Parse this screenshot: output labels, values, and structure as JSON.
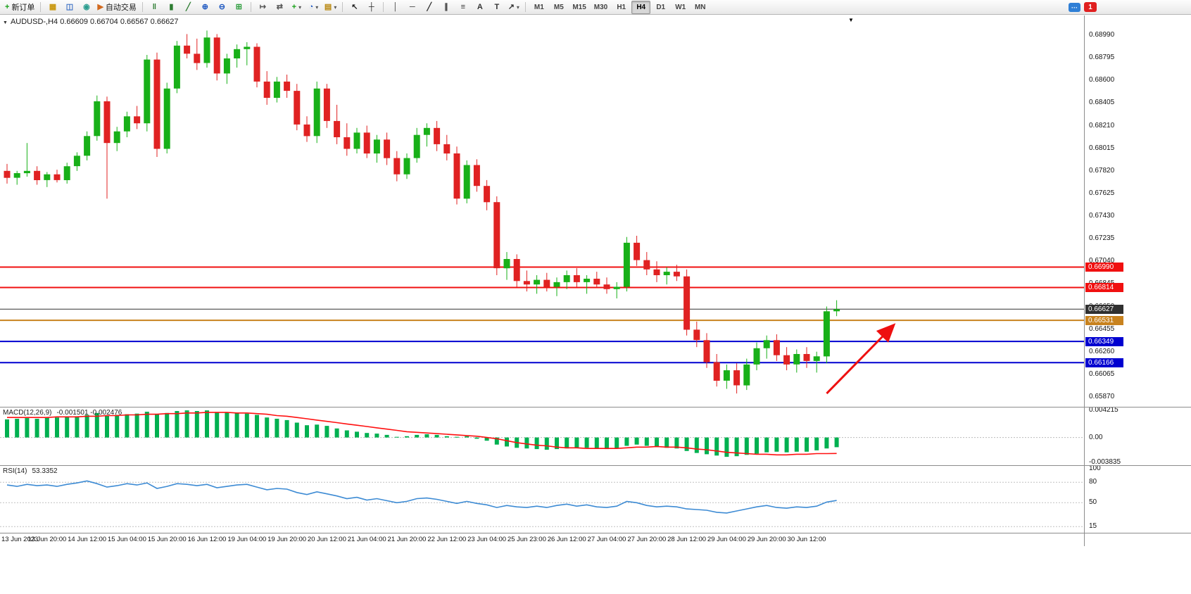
{
  "toolbar": {
    "notification_count": "1",
    "timeframes": [
      "M1",
      "M5",
      "M15",
      "M30",
      "H1",
      "H4",
      "D1",
      "W1",
      "MN"
    ],
    "active_timeframe": "H4",
    "groups": [
      {
        "items": [
          {
            "name": "new-order-button",
            "icon": "new-order-icon",
            "glyph": "+",
            "color": "#16a016",
            "label": "新订单"
          }
        ]
      },
      {
        "items": [
          {
            "name": "new-chart-button",
            "icon": "new-chart-icon",
            "glyph": "▦",
            "color": "#c8960c"
          },
          {
            "name": "profiles-button",
            "icon": "profiles-icon",
            "glyph": "◫",
            "color": "#3a6fc4"
          },
          {
            "name": "market-watch-button",
            "icon": "market-watch-icon",
            "glyph": "◉",
            "color": "#2a9d8f"
          },
          {
            "name": "autotrading-button",
            "icon": "autotrading-icon",
            "glyph": "▶",
            "color": "#d2691e",
            "label": "自动交易"
          }
        ]
      },
      {
        "items": [
          {
            "name": "bar-chart-button",
            "icon": "bar-chart-icon",
            "glyph": "‖",
            "color": "#2e7d32"
          },
          {
            "name": "candlestick-button",
            "icon": "candlestick-icon",
            "glyph": "▮",
            "color": "#2e7d32"
          },
          {
            "name": "line-chart-button",
            "icon": "line-chart-icon",
            "glyph": "╱",
            "color": "#2e7d32"
          },
          {
            "name": "zoom-in-button",
            "icon": "zoom-in-icon",
            "glyph": "⊕",
            "color": "#1a55c0"
          },
          {
            "name": "zoom-out-button",
            "icon": "zoom-out-icon",
            "glyph": "⊖",
            "color": "#1a55c0"
          },
          {
            "name": "tile-windows-button",
            "icon": "tile-windows-icon",
            "glyph": "⊞",
            "color": "#2e9e3e"
          }
        ]
      },
      {
        "items": [
          {
            "name": "auto-scroll-button",
            "icon": "auto-scroll-icon",
            "glyph": "↦",
            "color": "#555555"
          },
          {
            "name": "chart-shift-button",
            "icon": "chart-shift-icon",
            "glyph": "⇄",
            "color": "#555555"
          },
          {
            "name": "indicators-button",
            "icon": "indicators-icon",
            "glyph": "+",
            "color": "#16a016",
            "dropdown": true
          },
          {
            "name": "periods-button",
            "icon": "periods-icon",
            "glyph": "◔",
            "color": "#1a55c0",
            "dropdown": true
          },
          {
            "name": "templates-button",
            "icon": "templates-icon",
            "glyph": "▤",
            "color": "#b8860b",
            "dropdown": true
          }
        ]
      },
      {
        "items": [
          {
            "name": "cursor-button",
            "icon": "cursor-icon",
            "glyph": "↖",
            "color": "#222222"
          },
          {
            "name": "crosshair-button",
            "icon": "crosshair-icon",
            "glyph": "┼",
            "color": "#222222"
          }
        ]
      },
      {
        "items": [
          {
            "name": "vertical-line-button",
            "icon": "vertical-line-icon",
            "glyph": "│",
            "color": "#333333"
          },
          {
            "name": "horizontal-line-button",
            "icon": "horizontal-line-icon",
            "glyph": "─",
            "color": "#333333"
          },
          {
            "name": "trendline-button",
            "icon": "trendline-icon",
            "glyph": "╱",
            "color": "#333333"
          },
          {
            "name": "channel-button",
            "icon": "channel-icon",
            "glyph": "∥",
            "color": "#333333"
          },
          {
            "name": "fibonacci-button",
            "icon": "fibonacci-icon",
            "glyph": "≡",
            "color": "#333333"
          },
          {
            "name": "text-button",
            "icon": "text-icon",
            "glyph": "A",
            "color": "#333333"
          },
          {
            "name": "text-label-button",
            "icon": "text-label-icon",
            "glyph": "T",
            "color": "#333333"
          },
          {
            "name": "arrows-button",
            "icon": "arrows-icon",
            "glyph": "↗",
            "color": "#333333",
            "dropdown": true
          }
        ]
      }
    ]
  },
  "chart_data": [
    {
      "type": "candlestick",
      "title_line": "AUDUSD-,H4 0.66609 0.66704 0.66567 0.66627",
      "symbol": "AUDUSD-",
      "timeframe": "H4",
      "current_ohlc": {
        "open": 0.66609,
        "high": 0.66704,
        "low": 0.66567,
        "close": 0.66627
      },
      "ylim": [
        0.65785,
        0.6916
      ],
      "colors": {
        "bull": "#18b018",
        "bear": "#e02222"
      },
      "y_axis_labels": [
        "0.68990",
        "0.68795",
        "0.68600",
        "0.68405",
        "0.68210",
        "0.68015",
        "0.67820",
        "0.67625",
        "0.67430",
        "0.67235",
        "0.67040",
        "0.66845",
        "0.66650",
        "0.66455",
        "0.66260",
        "0.66065",
        "0.65870"
      ],
      "time_labels": [
        "13 Jun 2023",
        "13 Jun 20:00",
        "14 Jun 12:00",
        "15 Jun 04:00",
        "15 Jun 20:00",
        "16 Jun 12:00",
        "19 Jun 04:00",
        "19 Jun 20:00",
        "20 Jun 12:00",
        "21 Jun 04:00",
        "21 Jun 20:00",
        "22 Jun 12:00",
        "23 Jun 04:00",
        "25 Jun 23:00",
        "26 Jun 12:00",
        "27 Jun 04:00",
        "27 Jun 20:00",
        "28 Jun 12:00",
        "29 Jun 04:00",
        "29 Jun 20:00",
        "30 Jun 12:00"
      ],
      "price_lines": [
        {
          "price": 0.6699,
          "label": "0.66990",
          "color": "#f01010",
          "width": 2
        },
        {
          "price": 0.66814,
          "label": "0.66814",
          "color": "#f01010",
          "width": 2
        },
        {
          "price": 0.66627,
          "label": "0.66627",
          "color": "#303030",
          "width": 1
        },
        {
          "price": 0.66531,
          "label": "0.66531",
          "color": "#c8821e",
          "width": 2
        },
        {
          "price": 0.66349,
          "label": "0.66349",
          "color": "#0000d0",
          "width": 2
        },
        {
          "price": 0.66166,
          "label": "0.66166",
          "color": "#0000d0",
          "width": 2
        }
      ],
      "annotations": [
        {
          "type": "arrow",
          "from": {
            "x_index": 82.0,
            "price": 0.659
          },
          "to": {
            "x_index": 88.6,
            "price": 0.6648
          },
          "color": "#ee1010",
          "width": 3
        }
      ],
      "ohlc": [
        [
          0.6782,
          0.6788,
          0.6771,
          0.6776
        ],
        [
          0.6776,
          0.6782,
          0.677,
          0.678
        ],
        [
          0.678,
          0.6806,
          0.6777,
          0.6782
        ],
        [
          0.6782,
          0.6786,
          0.677,
          0.6774
        ],
        [
          0.6774,
          0.6781,
          0.6768,
          0.6779
        ],
        [
          0.6779,
          0.6783,
          0.6772,
          0.6774
        ],
        [
          0.6774,
          0.6789,
          0.6771,
          0.6786
        ],
        [
          0.6786,
          0.6798,
          0.6782,
          0.6795
        ],
        [
          0.6795,
          0.6816,
          0.6791,
          0.6812
        ],
        [
          0.6812,
          0.6847,
          0.6808,
          0.6842
        ],
        [
          0.6842,
          0.6846,
          0.6758,
          0.6806
        ],
        [
          0.6806,
          0.682,
          0.6799,
          0.6816
        ],
        [
          0.6816,
          0.6833,
          0.6811,
          0.6829
        ],
        [
          0.6829,
          0.6838,
          0.6818,
          0.6823
        ],
        [
          0.6823,
          0.6882,
          0.6816,
          0.6878
        ],
        [
          0.6878,
          0.6884,
          0.6794,
          0.6801
        ],
        [
          0.6801,
          0.6858,
          0.6797,
          0.6853
        ],
        [
          0.6853,
          0.6894,
          0.6849,
          0.689
        ],
        [
          0.689,
          0.69,
          0.6879,
          0.6883
        ],
        [
          0.6883,
          0.6896,
          0.6869,
          0.6875
        ],
        [
          0.6875,
          0.6903,
          0.6871,
          0.6897
        ],
        [
          0.6897,
          0.69,
          0.686,
          0.6866
        ],
        [
          0.6866,
          0.6883,
          0.6857,
          0.6879
        ],
        [
          0.6879,
          0.6891,
          0.6871,
          0.6887
        ],
        [
          0.6887,
          0.6893,
          0.6873,
          0.6889
        ],
        [
          0.6889,
          0.6892,
          0.6854,
          0.6859
        ],
        [
          0.6859,
          0.6868,
          0.6839,
          0.6845
        ],
        [
          0.6845,
          0.6863,
          0.6841,
          0.6859
        ],
        [
          0.6859,
          0.6865,
          0.6845,
          0.6851
        ],
        [
          0.6851,
          0.6857,
          0.6817,
          0.6822
        ],
        [
          0.6822,
          0.6829,
          0.6807,
          0.6812
        ],
        [
          0.6812,
          0.6859,
          0.6806,
          0.6853
        ],
        [
          0.6853,
          0.6857,
          0.6819,
          0.6825
        ],
        [
          0.6825,
          0.6839,
          0.6805,
          0.6811
        ],
        [
          0.6811,
          0.6823,
          0.6795,
          0.6801
        ],
        [
          0.6801,
          0.6819,
          0.6797,
          0.6815
        ],
        [
          0.6815,
          0.6821,
          0.6793,
          0.6797
        ],
        [
          0.6797,
          0.6813,
          0.6789,
          0.6809
        ],
        [
          0.6809,
          0.6815,
          0.6787,
          0.6793
        ],
        [
          0.6793,
          0.6799,
          0.6773,
          0.6779
        ],
        [
          0.6779,
          0.6797,
          0.6775,
          0.6793
        ],
        [
          0.6793,
          0.6819,
          0.6789,
          0.6813
        ],
        [
          0.6813,
          0.6823,
          0.6803,
          0.6819
        ],
        [
          0.6819,
          0.6825,
          0.6799,
          0.6805
        ],
        [
          0.6805,
          0.6813,
          0.6791,
          0.6797
        ],
        [
          0.6797,
          0.6803,
          0.6753,
          0.6758
        ],
        [
          0.6758,
          0.6791,
          0.6754,
          0.6787
        ],
        [
          0.6787,
          0.6792,
          0.6764,
          0.6769
        ],
        [
          0.6769,
          0.6774,
          0.6748,
          0.6755
        ],
        [
          0.6755,
          0.676,
          0.6692,
          0.6698
        ],
        [
          0.6698,
          0.6712,
          0.6688,
          0.6706
        ],
        [
          0.6706,
          0.671,
          0.6682,
          0.6687
        ],
        [
          0.6687,
          0.6696,
          0.6678,
          0.6684
        ],
        [
          0.6684,
          0.6692,
          0.6676,
          0.6688
        ],
        [
          0.6688,
          0.6694,
          0.6678,
          0.6682
        ],
        [
          0.6682,
          0.669,
          0.6674,
          0.6686
        ],
        [
          0.6686,
          0.6696,
          0.668,
          0.6692
        ],
        [
          0.6692,
          0.6698,
          0.6682,
          0.6686
        ],
        [
          0.6686,
          0.6692,
          0.6676,
          0.6689
        ],
        [
          0.6689,
          0.6695,
          0.6681,
          0.6684
        ],
        [
          0.6684,
          0.669,
          0.6676,
          0.668
        ],
        [
          0.668,
          0.6686,
          0.6672,
          0.6682
        ],
        [
          0.6682,
          0.6725,
          0.6678,
          0.672
        ],
        [
          0.672,
          0.6726,
          0.67,
          0.6705
        ],
        [
          0.6705,
          0.6712,
          0.6692,
          0.6697
        ],
        [
          0.6697,
          0.6704,
          0.6686,
          0.6692
        ],
        [
          0.6692,
          0.6699,
          0.6684,
          0.6695
        ],
        [
          0.6695,
          0.6701,
          0.6687,
          0.6691
        ],
        [
          0.6691,
          0.6697,
          0.664,
          0.6645
        ],
        [
          0.6645,
          0.6652,
          0.663,
          0.6636
        ],
        [
          0.6636,
          0.6642,
          0.6612,
          0.6617
        ],
        [
          0.6617,
          0.6624,
          0.6596,
          0.6601
        ],
        [
          0.6601,
          0.6615,
          0.6594,
          0.661
        ],
        [
          0.661,
          0.6616,
          0.659,
          0.6597
        ],
        [
          0.6597,
          0.662,
          0.6593,
          0.6615
        ],
        [
          0.6615,
          0.6634,
          0.661,
          0.6629
        ],
        [
          0.6629,
          0.664,
          0.662,
          0.6636
        ],
        [
          0.6636,
          0.6641,
          0.6618,
          0.6623
        ],
        [
          0.6623,
          0.663,
          0.661,
          0.6615
        ],
        [
          0.6615,
          0.6628,
          0.6608,
          0.6624
        ],
        [
          0.6624,
          0.663,
          0.6612,
          0.6618
        ],
        [
          0.6618,
          0.6626,
          0.6608,
          0.6622
        ],
        [
          0.6622,
          0.6665,
          0.6616,
          0.66609
        ],
        [
          0.66609,
          0.66704,
          0.66567,
          0.66627
        ]
      ]
    },
    {
      "type": "bar",
      "title": "MACD(12,26,9)",
      "values_label": "-0.001501 -0.002476",
      "ylim": [
        -0.0043,
        0.00465
      ],
      "y_axis_labels": [
        "0.004215",
        "0.00",
        "-0.003835"
      ],
      "colors": {
        "histogram": "#00b050",
        "signal": "#ff1010"
      },
      "histogram": [
        0.0028,
        0.0029,
        0.003,
        0.0029,
        0.0031,
        0.0031,
        0.0032,
        0.0033,
        0.0035,
        0.0038,
        0.0034,
        0.0035,
        0.0036,
        0.0037,
        0.004,
        0.0036,
        0.0038,
        0.0041,
        0.0042,
        0.0041,
        0.0042,
        0.0039,
        0.0039,
        0.0038,
        0.0037,
        0.0035,
        0.0031,
        0.0029,
        0.0027,
        0.0023,
        0.0019,
        0.002,
        0.0018,
        0.0014,
        0.0011,
        0.0009,
        0.0007,
        0.0006,
        0.0004,
        0.0001,
        0.0002,
        0.0004,
        0.0005,
        0.0004,
        0.0002,
        0.0001,
        0.0002,
        -0.0002,
        -0.0005,
        -0.0011,
        -0.0014,
        -0.0016,
        -0.0017,
        -0.0018,
        -0.0019,
        -0.0018,
        -0.0017,
        -0.0016,
        -0.0016,
        -0.0017,
        -0.0018,
        -0.0017,
        -0.0013,
        -0.0011,
        -0.0013,
        -0.0015,
        -0.0016,
        -0.0017,
        -0.0021,
        -0.0024,
        -0.0026,
        -0.0028,
        -0.003,
        -0.0029,
        -0.0027,
        -0.0025,
        -0.0023,
        -0.0022,
        -0.0023,
        -0.0022,
        -0.0022,
        -0.002,
        -0.0017,
        -0.001501
      ],
      "signal": [
        0.0031,
        0.0031,
        0.0031,
        0.0031,
        0.0031,
        0.0032,
        0.0032,
        0.0032,
        0.0033,
        0.0033,
        0.0034,
        0.0034,
        0.0035,
        0.0035,
        0.0036,
        0.0036,
        0.0037,
        0.0037,
        0.0038,
        0.0038,
        0.0039,
        0.0039,
        0.0039,
        0.0038,
        0.0038,
        0.0037,
        0.0036,
        0.0034,
        0.0033,
        0.0031,
        0.0029,
        0.0027,
        0.0025,
        0.0023,
        0.0021,
        0.0019,
        0.0017,
        0.0015,
        0.0013,
        0.0011,
        0.0009,
        0.0008,
        0.0007,
        0.0006,
        0.0005,
        0.0004,
        0.0003,
        0.0002,
        0.0,
        -0.0002,
        -0.0005,
        -0.0008,
        -0.001,
        -0.0012,
        -0.0013,
        -0.0015,
        -0.0016,
        -0.0016,
        -0.0017,
        -0.0017,
        -0.0017,
        -0.0017,
        -0.0016,
        -0.0015,
        -0.0015,
        -0.0014,
        -0.0015,
        -0.0015,
        -0.0016,
        -0.0018,
        -0.0019,
        -0.0021,
        -0.0023,
        -0.0024,
        -0.0025,
        -0.0026,
        -0.0026,
        -0.0027,
        -0.0027,
        -0.0026,
        -0.0026,
        -0.0025,
        -0.0025,
        -0.002476
      ]
    },
    {
      "type": "line",
      "title": "RSI(14)",
      "value_label": "53.3352",
      "ylim": [
        6,
        104
      ],
      "levels": [
        80,
        50,
        15
      ],
      "y_axis_labels": [
        "100",
        "80",
        "50",
        "15"
      ],
      "colors": {
        "line": "#3d8bd4"
      },
      "values": [
        76,
        74,
        77,
        75,
        76,
        74,
        77,
        79,
        82,
        78,
        73,
        75,
        78,
        76,
        79,
        71,
        74,
        78,
        77,
        75,
        77,
        72,
        74,
        76,
        77,
        73,
        69,
        71,
        70,
        65,
        62,
        66,
        63,
        60,
        56,
        58,
        54,
        56,
        53,
        50,
        52,
        56,
        57,
        55,
        52,
        49,
        52,
        49,
        47,
        43,
        46,
        44,
        43,
        45,
        43,
        46,
        48,
        45,
        47,
        44,
        43,
        45,
        52,
        50,
        46,
        44,
        45,
        44,
        41,
        40,
        39,
        36,
        35,
        38,
        41,
        44,
        46,
        43,
        42,
        44,
        43,
        45,
        51,
        53.3352
      ]
    }
  ]
}
